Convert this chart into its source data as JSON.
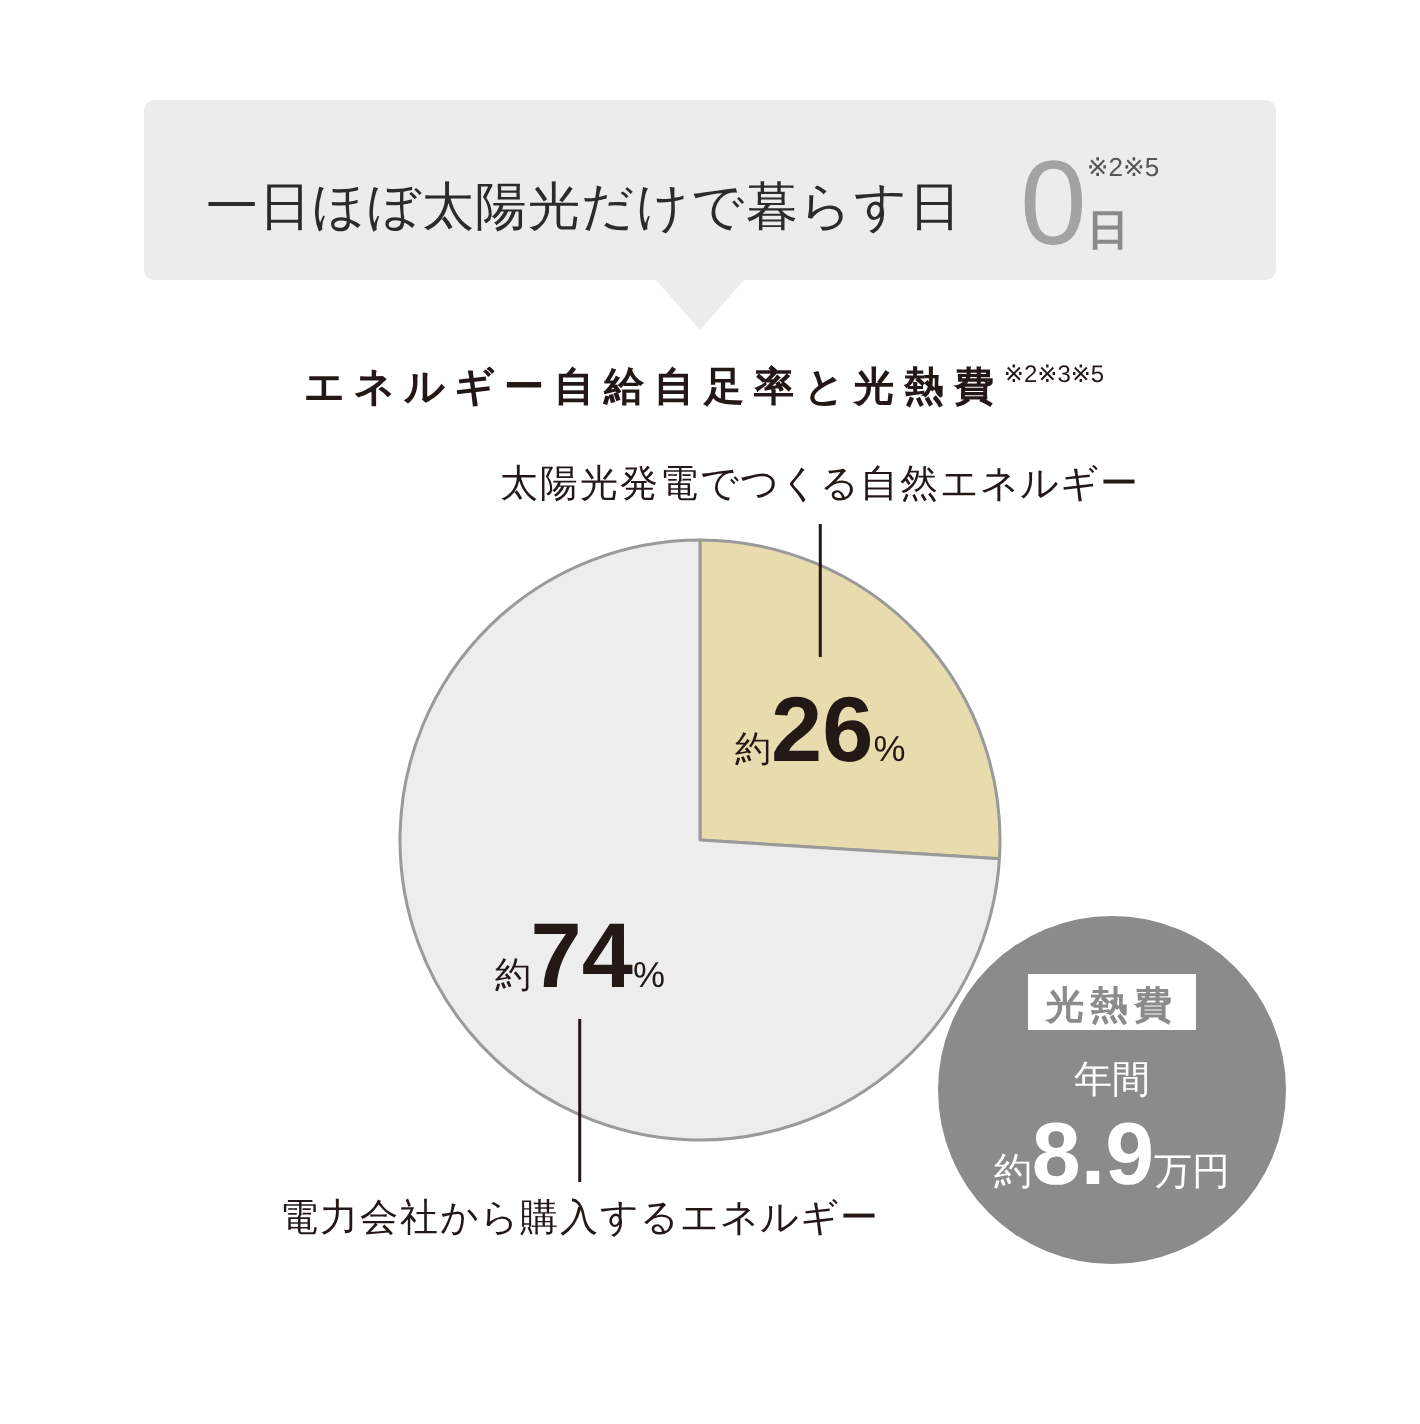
{
  "chart_data": {
    "type": "pie",
    "title": "エネルギー自給自足率と光熱費$^{※2※3※5}$",
    "categories": [
      "太陽光発電でつくる自然エネルギー",
      "電力会社から購入するエネルギー"
    ],
    "values": [
      26,
      74
    ],
    "colors": [
      "#e8dcae",
      "#ededed"
    ],
    "value_labels": [
      "約26%",
      "約74%"
    ],
    "annotations": [
      "一日ほぼ太陽光だけで暮らす日",
      "0日$^{※2※5}$",
      "光熱費",
      "年間",
      "約8.9万円"
    ]
  }
}
